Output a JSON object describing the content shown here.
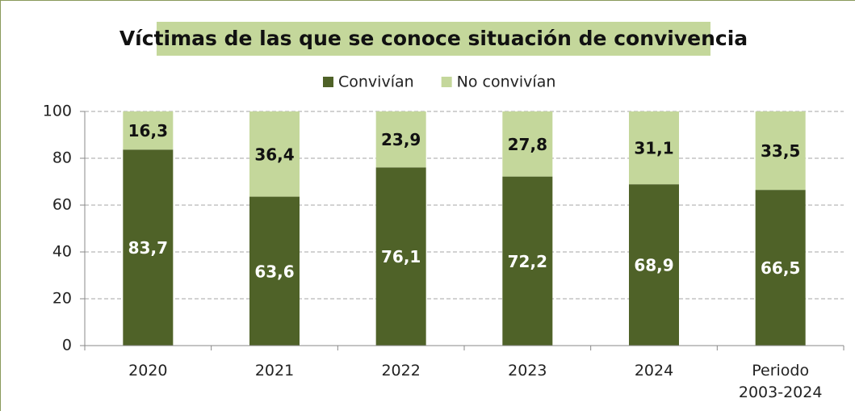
{
  "chart_data": {
    "type": "stacked_bar",
    "title": "Víctimas de las que se conoce situación de convivencia",
    "categories": [
      "2020",
      "2021",
      "2022",
      "2023",
      "2024",
      "Periodo 2003-2024"
    ],
    "series": [
      {
        "name": "Convivían",
        "color": "#4f6228",
        "values": [
          83.7,
          63.6,
          76.1,
          72.2,
          68.9,
          66.5
        ],
        "value_labels": [
          "83,7",
          "63,6",
          "76,1",
          "72,2",
          "68,9",
          "66,5"
        ]
      },
      {
        "name": "No convivían",
        "color": "#c4d79b",
        "values": [
          16.3,
          36.4,
          23.9,
          27.8,
          31.1,
          33.5
        ],
        "value_labels": [
          "16,3",
          "36,4",
          "23,9",
          "27,8",
          "31,1",
          "33,5"
        ]
      }
    ],
    "ylim": [
      0,
      100
    ],
    "yticks": [
      0,
      20,
      40,
      60,
      80,
      100
    ],
    "grid": true,
    "legend": "top"
  }
}
